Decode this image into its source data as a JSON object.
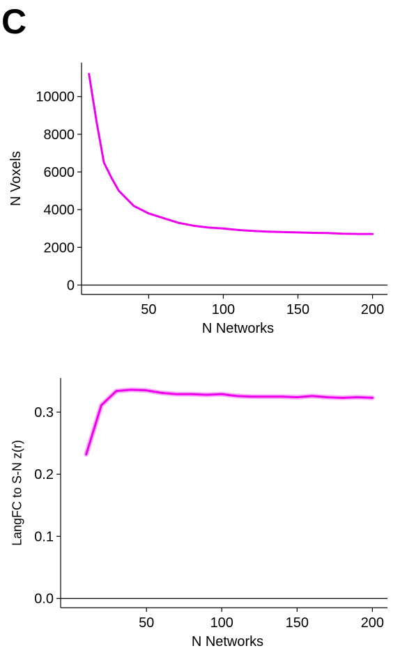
{
  "panel_letter": "C",
  "chart_data": [
    {
      "type": "line",
      "xlabel": "N Networks",
      "ylabel": "N Voxels",
      "xlim": [
        5,
        210
      ],
      "ylim": [
        -500,
        11800
      ],
      "xticks": [
        50,
        100,
        150,
        200
      ],
      "yticks": [
        0,
        2000,
        4000,
        6000,
        8000,
        10000
      ],
      "zero_line": true,
      "grid": false,
      "series_color": "#ee00ee",
      "series": [
        {
          "x": [
            10,
            15,
            20,
            25,
            30,
            40,
            50,
            60,
            70,
            80,
            90,
            100,
            110,
            120,
            130,
            140,
            150,
            160,
            170,
            180,
            190,
            200
          ],
          "y": [
            11200,
            8700,
            6500,
            5700,
            5000,
            4200,
            3800,
            3550,
            3300,
            3150,
            3050,
            3000,
            2920,
            2870,
            2830,
            2810,
            2790,
            2770,
            2760,
            2720,
            2710,
            2710
          ]
        }
      ]
    },
    {
      "type": "line",
      "xlabel": "N Networks",
      "ylabel": "LangFC to S-N z(r)",
      "xlim": [
        -7,
        210
      ],
      "ylim": [
        -0.015,
        0.355
      ],
      "xticks": [
        50,
        100,
        150,
        200
      ],
      "yticks": [
        0.0,
        0.1,
        0.2,
        0.3
      ],
      "ytick_labels": [
        "0.0",
        "0.1",
        "0.2",
        "0.3"
      ],
      "zero_line": true,
      "grid": false,
      "series_color": "#ee00ee",
      "series": [
        {
          "x": [
            10,
            20,
            30,
            40,
            50,
            60,
            70,
            80,
            90,
            100,
            110,
            120,
            130,
            140,
            150,
            160,
            170,
            180,
            190,
            200
          ],
          "y": [
            0.232,
            0.311,
            0.334,
            0.336,
            0.335,
            0.331,
            0.329,
            0.329,
            0.328,
            0.329,
            0.326,
            0.325,
            0.325,
            0.325,
            0.324,
            0.326,
            0.324,
            0.323,
            0.324,
            0.323
          ]
        }
      ]
    }
  ]
}
